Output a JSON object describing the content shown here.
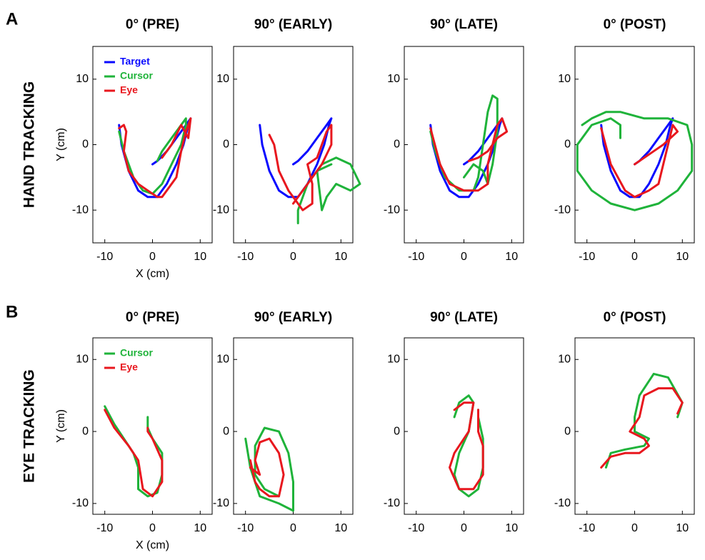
{
  "chart_data": [
    {
      "type": "line",
      "title": "0° (PRE)",
      "panel_label": "A",
      "row_label": "HAND TRACKING",
      "xlabel": "X (cm)",
      "ylabel": "Y (cm)",
      "legend": "upper left",
      "xlim": [
        -12.5,
        12.5
      ],
      "ylim": [
        -15,
        15
      ],
      "xticks": [
        -10,
        0,
        10
      ],
      "yticks": [
        -10,
        0,
        10
      ],
      "series": [
        {
          "name": "Target",
          "color": "#0a0aff",
          "x": [
            -7,
            -6.5,
            -5,
            -3,
            -1,
            1,
            3,
            5,
            6.5,
            7.5,
            8,
            7,
            5,
            3,
            1,
            0
          ],
          "values": [
            3,
            0,
            -4,
            -7,
            -8,
            -8,
            -6,
            -3,
            0,
            3,
            4,
            3,
            1,
            -1,
            -2.5,
            -3
          ]
        },
        {
          "name": "Cursor",
          "color": "#1fb33a",
          "x": [
            -7,
            -6,
            -4,
            -2,
            0,
            2,
            4,
            6,
            7,
            7,
            6,
            4,
            2,
            1
          ],
          "values": [
            2,
            -1,
            -5,
            -7,
            -7.5,
            -6,
            -3,
            0,
            3,
            4,
            3,
            1,
            -1,
            -2.5
          ]
        },
        {
          "name": "Eye",
          "color": "#e8171e",
          "x": [
            -7,
            -6,
            -5.5,
            -6,
            -5,
            -3,
            -1,
            1,
            2,
            3,
            5,
            6,
            7,
            8,
            7.5,
            6,
            4,
            2
          ],
          "values": [
            2.5,
            3,
            2,
            -1,
            -4,
            -6,
            -7,
            -8,
            -8,
            -7,
            -5,
            -1,
            2,
            4,
            1,
            3,
            0,
            -2
          ]
        }
      ]
    },
    {
      "type": "line",
      "title": "90° (EARLY)",
      "xlim": [
        -12.5,
        12.5
      ],
      "ylim": [
        -15,
        15
      ],
      "xticks": [
        -10,
        0,
        10
      ],
      "yticks": [
        -10,
        0,
        10
      ],
      "series": [
        {
          "color": "#0a0aff",
          "x": [
            -7,
            -6.5,
            -5,
            -3,
            -1,
            1,
            3,
            5,
            6.5,
            7.5,
            8,
            7,
            5,
            3,
            1,
            0
          ],
          "values": [
            3,
            0,
            -4,
            -7,
            -8,
            -8,
            -6,
            -3,
            0,
            3,
            4,
            3,
            1,
            -1,
            -2.5,
            -3
          ]
        },
        {
          "color": "#1fb33a",
          "x": [
            1,
            1,
            3,
            6,
            9,
            12,
            14,
            12,
            9,
            7,
            6,
            5,
            8
          ],
          "values": [
            -12,
            -10,
            -6,
            -3,
            -2,
            -3,
            -6,
            -7,
            -6,
            -8,
            -10,
            -4,
            -3
          ]
        },
        {
          "color": "#e8171e",
          "x": [
            -5,
            -4,
            -3,
            -1,
            1,
            2,
            4,
            4,
            3,
            5,
            7,
            8,
            8,
            6,
            2,
            0
          ],
          "values": [
            1.5,
            0,
            -4,
            -7,
            -9,
            -10,
            -9,
            -6,
            -3,
            -2,
            2,
            3,
            0,
            -3,
            -7,
            -9
          ]
        }
      ]
    },
    {
      "type": "line",
      "title": "90° (LATE)",
      "xlim": [
        -12.5,
        12.5
      ],
      "ylim": [
        -15,
        15
      ],
      "xticks": [
        -10,
        0,
        10
      ],
      "yticks": [
        -10,
        0,
        10
      ],
      "series": [
        {
          "color": "#0a0aff",
          "x": [
            -7,
            -6.5,
            -5,
            -3,
            -1,
            1,
            3,
            5,
            6.5,
            7.5,
            8,
            7,
            5,
            3,
            1,
            0
          ],
          "values": [
            3,
            0,
            -4,
            -7,
            -8,
            -8,
            -6,
            -3,
            0,
            3,
            4,
            3,
            1,
            -1,
            -2.5,
            -3
          ]
        },
        {
          "color": "#1fb33a",
          "x": [
            -7,
            -6,
            -4,
            -1,
            2,
            3,
            4,
            5,
            6,
            7,
            7,
            6,
            5,
            4,
            2,
            0
          ],
          "values": [
            2,
            -1,
            -5,
            -7,
            -7,
            -5,
            0,
            5,
            7.5,
            7,
            2,
            -3,
            -6,
            -4,
            -3,
            -5
          ]
        },
        {
          "color": "#e8171e",
          "x": [
            -7,
            -5,
            -3,
            0,
            3,
            5,
            5,
            6,
            7,
            8,
            9,
            7,
            5,
            3,
            1
          ],
          "values": [
            2.5,
            -3,
            -6,
            -7,
            -7,
            -6,
            -3,
            0,
            3,
            4,
            2,
            1,
            -1,
            -2,
            -2.5
          ]
        }
      ]
    },
    {
      "type": "line",
      "title": "0° (POST)",
      "xlim": [
        -12.5,
        12.5
      ],
      "ylim": [
        -15,
        15
      ],
      "xticks": [
        -10,
        0,
        10
      ],
      "yticks": [
        -10,
        0,
        10
      ],
      "series": [
        {
          "color": "#0a0aff",
          "x": [
            -7,
            -6.5,
            -5,
            -3,
            -1,
            1,
            3,
            5,
            6.5,
            7.5,
            8,
            7,
            5,
            3,
            1,
            0
          ],
          "values": [
            3,
            0,
            -4,
            -7,
            -8,
            -8,
            -6,
            -3,
            0,
            3,
            4,
            3,
            1,
            -1,
            -2.5,
            -3
          ]
        },
        {
          "color": "#1fb33a",
          "x": [
            -3,
            -3,
            -5,
            -9,
            -12,
            -12,
            -9,
            -5,
            0,
            5,
            9,
            12,
            12,
            11,
            7,
            2,
            -3,
            -6,
            -9,
            -11
          ],
          "values": [
            1,
            3,
            4,
            3,
            0,
            -4,
            -7,
            -9,
            -10,
            -9,
            -7,
            -4,
            0,
            3,
            4,
            4,
            5,
            5,
            4,
            3
          ]
        },
        {
          "color": "#e8171e",
          "x": [
            -7,
            -5,
            -2,
            0,
            3,
            5,
            6,
            7,
            8,
            9,
            6,
            4,
            1,
            0
          ],
          "values": [
            2.5,
            -3,
            -7,
            -8,
            -7,
            -6,
            -3,
            0,
            3,
            2,
            0,
            -1,
            -2.5,
            -3
          ]
        }
      ]
    },
    {
      "type": "line",
      "title": "0° (PRE)",
      "panel_label": "B",
      "row_label": "EYE TRACKING",
      "xlabel": "X (cm)",
      "ylabel": "Y (cm)",
      "legend": "upper left",
      "xlim": [
        -12.5,
        12.5
      ],
      "ylim": [
        -11.5,
        13
      ],
      "xticks": [
        -10,
        0,
        10
      ],
      "yticks": [
        -10,
        0,
        10
      ],
      "series": [
        {
          "name": "Cursor",
          "color": "#1fb33a",
          "x": [
            -10,
            -8,
            -6,
            -4,
            -3,
            -3,
            -1,
            1,
            2,
            2,
            0,
            -1,
            -1
          ],
          "values": [
            3.5,
            1,
            -1,
            -3,
            -5,
            -8,
            -9,
            -8.5,
            -6,
            -3,
            -1,
            0.5,
            2
          ]
        },
        {
          "name": "Eye",
          "color": "#e8171e",
          "x": [
            -10,
            -8,
            -5,
            -3,
            -2,
            0,
            2,
            2,
            0,
            -1,
            -1
          ],
          "values": [
            3,
            0.5,
            -2,
            -4,
            -8,
            -9,
            -7,
            -4,
            -1,
            0,
            0.5
          ]
        }
      ]
    },
    {
      "type": "line",
      "title": "90° (EARLY)",
      "xlim": [
        -12.5,
        12.5
      ],
      "ylim": [
        -11.5,
        13
      ],
      "xticks": [
        -10,
        0,
        10
      ],
      "yticks": [
        -10,
        0,
        10
      ],
      "series": [
        {
          "color": "#1fb33a",
          "x": [
            -10,
            -9,
            -7,
            -3,
            0,
            0,
            -1,
            -3,
            -6,
            -8,
            -8,
            -6,
            -3
          ],
          "values": [
            -1,
            -5,
            -9,
            -10,
            -11,
            -7,
            -3,
            0,
            0.5,
            -2,
            -6,
            -8,
            -9
          ]
        },
        {
          "color": "#e8171e",
          "x": [
            -9,
            -8,
            -7,
            -5,
            -3,
            -2,
            -3,
            -5,
            -7,
            -8,
            -7,
            -9
          ],
          "values": [
            -4,
            -7,
            -8,
            -9,
            -9,
            -6,
            -3,
            -1,
            -1.5,
            -4,
            -6,
            -5
          ]
        }
      ]
    },
    {
      "type": "line",
      "title": "90° (LATE)",
      "xlim": [
        -12.5,
        12.5
      ],
      "ylim": [
        -11.5,
        13
      ],
      "xticks": [
        -10,
        0,
        10
      ],
      "yticks": [
        -10,
        0,
        10
      ],
      "series": [
        {
          "color": "#1fb33a",
          "x": [
            -2,
            -1,
            1,
            2,
            1,
            -1,
            -2,
            -1,
            1,
            3,
            4,
            4,
            3,
            3
          ],
          "values": [
            2,
            4,
            5,
            4,
            0,
            -3,
            -6,
            -8,
            -9,
            -8,
            -5,
            -1,
            2,
            3
          ]
        },
        {
          "color": "#e8171e",
          "x": [
            -2,
            0,
            2,
            1,
            -2,
            -3,
            -1,
            2,
            4,
            4,
            3,
            3
          ],
          "values": [
            3,
            4,
            4,
            0,
            -3,
            -5,
            -8,
            -8,
            -6,
            -2,
            0,
            3
          ]
        }
      ]
    },
    {
      "type": "line",
      "title": "0° (POST)",
      "xlim": [
        -12.5,
        12.5
      ],
      "ylim": [
        -11.5,
        13
      ],
      "xticks": [
        -10,
        0,
        10
      ],
      "yticks": [
        -10,
        0,
        10
      ],
      "series": [
        {
          "color": "#1fb33a",
          "x": [
            -6,
            -5,
            -2,
            2,
            3,
            0,
            0,
            1,
            4,
            7,
            10,
            9
          ],
          "values": [
            -5,
            -3,
            -2.5,
            -2,
            -1,
            0,
            2,
            5,
            8,
            7.5,
            4,
            2
          ]
        },
        {
          "color": "#e8171e",
          "x": [
            -7,
            -5,
            -2,
            1,
            3,
            2,
            -1,
            1,
            2,
            5,
            8,
            10,
            9
          ],
          "values": [
            -5,
            -3.5,
            -3,
            -3,
            -2,
            -1,
            0,
            2,
            5,
            6,
            6,
            4,
            2.5
          ]
        }
      ]
    }
  ]
}
